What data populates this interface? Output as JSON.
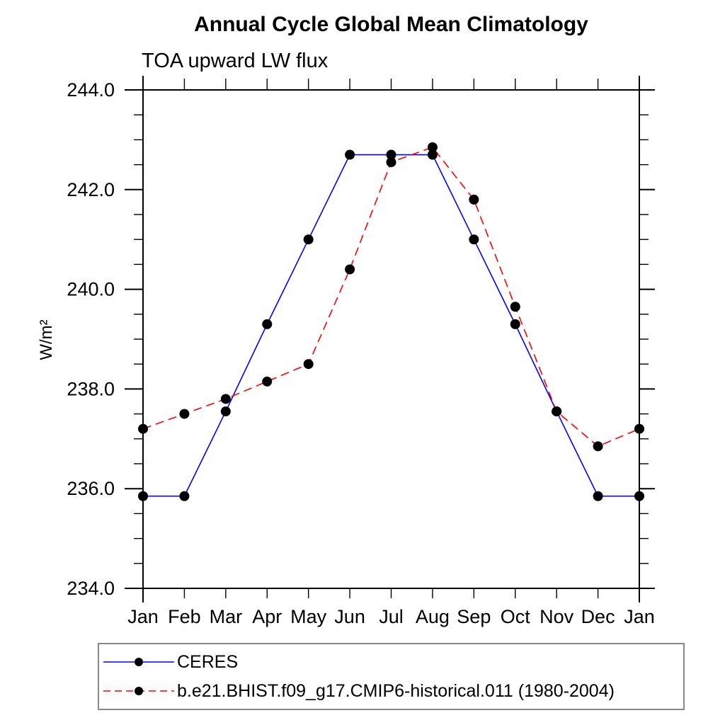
{
  "chart_data": {
    "type": "line",
    "title": "Annual Cycle Global Mean Climatology",
    "subtitle": "TOA upward LW flux",
    "ylabel": "W/m²",
    "xlabel": "",
    "categories": [
      "Jan",
      "Feb",
      "Mar",
      "Apr",
      "May",
      "Jun",
      "Jul",
      "Aug",
      "Sep",
      "Oct",
      "Nov",
      "Dec",
      "Jan"
    ],
    "ylim": [
      234.0,
      244.0
    ],
    "ytick_major": [
      234.0,
      236.0,
      238.0,
      240.0,
      242.0,
      244.0
    ],
    "ytick_minor_step": 0.5,
    "grid": false,
    "legend_position": "bottom-left",
    "frame_color": "#000000",
    "marker": "filled-circle",
    "marker_color": "#000000",
    "series": [
      {
        "id": "ceres",
        "name": "CERES",
        "color": "#0000ff",
        "style": "solid",
        "values": [
          235.85,
          235.85,
          237.55,
          239.3,
          241.0,
          242.7,
          242.7,
          242.7,
          241.0,
          239.3,
          237.55,
          235.85,
          235.85
        ]
      },
      {
        "id": "model",
        "name": "b.e21.BHIST.f09_g17.CMIP6-historical.011 (1980-2004)",
        "color": "#ff0000",
        "style": "dashed",
        "values": [
          237.2,
          237.5,
          237.8,
          238.15,
          238.5,
          240.4,
          242.55,
          242.85,
          241.8,
          239.65,
          237.55,
          236.85,
          237.2
        ]
      }
    ]
  }
}
